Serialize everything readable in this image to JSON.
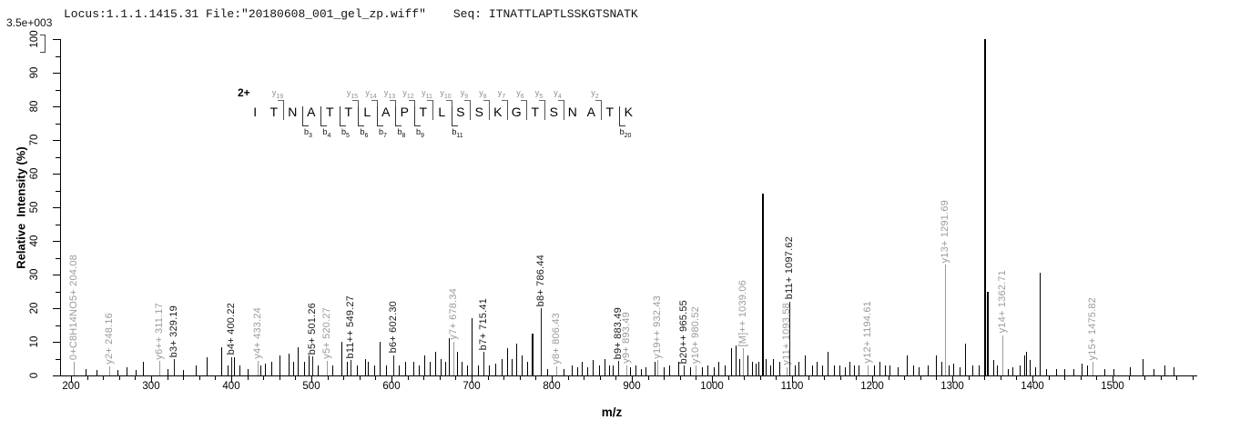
{
  "header": {
    "locus_file": "Locus:1.1.1.1415.31 File:\"20180608_001_gel_zp.wiff\"",
    "seq": "Seq: ITNATTLAPTLSSKGTSNATK"
  },
  "sequence_annotation": {
    "charge_label": "2+",
    "sequence": "ITNATTLAPTLSSKGTSNATK",
    "y_ions": [
      {
        "ion": "y19",
        "boundary": 2
      },
      {
        "ion": "y15",
        "boundary": 6
      },
      {
        "ion": "y14",
        "boundary": 7
      },
      {
        "ion": "y13",
        "boundary": 8
      },
      {
        "ion": "y12",
        "boundary": 9
      },
      {
        "ion": "y11",
        "boundary": 10
      },
      {
        "ion": "y10",
        "boundary": 11
      },
      {
        "ion": "y9",
        "boundary": 12
      },
      {
        "ion": "y8",
        "boundary": 13
      },
      {
        "ion": "y7",
        "boundary": 14
      },
      {
        "ion": "y6",
        "boundary": 15
      },
      {
        "ion": "y5",
        "boundary": 16
      },
      {
        "ion": "y4",
        "boundary": 17
      },
      {
        "ion": "y2",
        "boundary": 19
      }
    ],
    "b_ions": [
      {
        "ion": "b3",
        "boundary": 3
      },
      {
        "ion": "b4",
        "boundary": 4
      },
      {
        "ion": "b5",
        "boundary": 5
      },
      {
        "ion": "b6",
        "boundary": 6
      },
      {
        "ion": "b7",
        "boundary": 7
      },
      {
        "ion": "b8",
        "boundary": 8
      },
      {
        "ion": "b9",
        "boundary": 9
      },
      {
        "ion": "b11",
        "boundary": 11
      },
      {
        "ion": "b20",
        "boundary": 20
      }
    ]
  },
  "chart_data": {
    "type": "bar",
    "variant": "centroid MS/MS spectrum (stick plot)",
    "title": "Locus:1.1.1.1415.31 File:\"20180608_001_gel_zp.wiff\"  Seq: ITNATTLAPTLSSKGTSNATK",
    "intensity_scale": "3.5e+003",
    "xlabel": "m/z",
    "ylabel": "Relative  Intensity (%)",
    "xlim": [
      187,
      1607
    ],
    "ylim": [
      0,
      100
    ],
    "x_major_ticks": [
      200,
      300,
      400,
      500,
      600,
      700,
      800,
      900,
      1000,
      1100,
      1200,
      1300,
      1400,
      1500
    ],
    "x_minor_step": 20,
    "y_major_step": 10,
    "y_minor_step": 5,
    "grid": false,
    "legend": "none",
    "colors": {
      "b": "#1a1a1a",
      "y": "#9b9b9b",
      "other": "#9b9b9b",
      "unlabeled": "#000000"
    },
    "peaks_format": [
      "mz",
      "intensity_pct",
      "label",
      "series(b|y|other|null)",
      "line_width_px"
    ],
    "peaks": [
      [
        204.08,
        4,
        "0+C8H14NO5+ 204.08",
        "other"
      ],
      [
        219,
        2,
        null,
        null
      ],
      [
        232,
        1.5,
        null,
        null
      ],
      [
        248.16,
        2.7,
        "y2+ 248.16",
        "y"
      ],
      [
        258,
        1.5,
        null,
        null
      ],
      [
        270,
        2.5,
        null,
        null
      ],
      [
        281,
        1.5,
        null,
        null
      ],
      [
        290,
        4,
        null,
        null
      ],
      [
        311.17,
        4.3,
        "y6++ 311.17",
        "y"
      ],
      [
        321,
        2,
        null,
        null
      ],
      [
        329.19,
        4.9,
        "b3+ 329.19",
        "b"
      ],
      [
        340,
        1.5,
        null,
        null
      ],
      [
        356,
        3,
        null,
        null
      ],
      [
        370,
        5.4,
        null,
        null
      ],
      [
        388,
        8.5,
        null,
        null
      ],
      [
        396,
        3,
        null,
        null
      ],
      [
        400.22,
        5.5,
        "b4+ 400.22",
        "b"
      ],
      [
        404,
        5.5,
        null,
        null
      ],
      [
        411,
        3,
        null,
        null
      ],
      [
        421,
        2,
        null,
        null
      ],
      [
        433.24,
        4.3,
        "y4+ 433.24",
        "y"
      ],
      [
        437,
        3,
        null,
        null
      ],
      [
        443,
        3.5,
        null,
        null
      ],
      [
        450,
        4,
        null,
        null
      ],
      [
        461,
        6,
        null,
        null
      ],
      [
        472,
        6.5,
        null,
        null
      ],
      [
        478,
        4,
        null,
        null
      ],
      [
        484,
        8.5,
        null,
        null
      ],
      [
        491,
        4,
        null,
        null
      ],
      [
        497,
        6,
        null,
        null
      ],
      [
        501.26,
        5.7,
        "b5+ 501.26",
        "b"
      ],
      [
        509,
        3,
        null,
        null
      ],
      [
        520.27,
        4.3,
        "y5+ 520.27",
        "y"
      ],
      [
        527,
        3,
        null,
        null
      ],
      [
        537.5,
        10,
        null,
        null
      ],
      [
        545,
        4,
        null,
        null
      ],
      [
        549.27,
        4.5,
        "b11++ 549.27",
        "b"
      ],
      [
        557,
        3,
        null,
        null
      ],
      [
        568,
        5,
        null,
        null
      ],
      [
        571,
        4,
        null,
        null
      ],
      [
        579,
        3,
        null,
        null
      ],
      [
        586,
        10,
        null,
        null
      ],
      [
        594,
        3,
        null,
        null
      ],
      [
        602.3,
        6,
        "b6+ 602.30",
        "b"
      ],
      [
        610,
        3,
        null,
        null
      ],
      [
        618,
        4,
        null,
        null
      ],
      [
        628,
        4,
        null,
        null
      ],
      [
        635,
        3,
        null,
        null
      ],
      [
        641,
        6,
        null,
        null
      ],
      [
        648,
        4,
        null,
        null
      ],
      [
        655,
        7,
        null,
        null
      ],
      [
        662,
        5,
        null,
        null
      ],
      [
        668,
        4,
        null,
        null
      ],
      [
        672,
        11,
        null,
        null
      ],
      [
        678.34,
        10,
        "y7+ 678.34",
        "y"
      ],
      [
        682,
        7,
        null,
        null
      ],
      [
        688,
        4,
        null,
        null
      ],
      [
        695,
        3,
        null,
        null
      ],
      [
        701,
        17,
        null,
        null
      ],
      [
        708,
        3,
        null,
        null
      ],
      [
        715.41,
        7,
        "b7+ 715.41",
        "b"
      ],
      [
        722,
        3,
        null,
        null
      ],
      [
        730,
        3.5,
        null,
        null
      ],
      [
        738,
        5,
        null,
        null
      ],
      [
        745,
        8,
        null,
        null
      ],
      [
        750,
        5,
        null,
        null
      ],
      [
        756,
        9.5,
        null,
        null
      ],
      [
        763,
        6,
        null,
        null
      ],
      [
        770,
        4,
        null,
        null
      ],
      [
        776,
        12.5,
        null,
        null,
        2
      ],
      [
        786.44,
        20,
        "b8+ 786.44",
        "b"
      ],
      [
        795,
        2,
        null,
        null
      ],
      [
        806.43,
        2.7,
        "y8+ 806.43",
        "y"
      ],
      [
        815,
        2,
        null,
        null
      ],
      [
        825,
        3,
        null,
        null
      ],
      [
        832,
        2.5,
        null,
        null
      ],
      [
        838,
        4,
        null,
        null
      ],
      [
        845,
        2.5,
        null,
        null
      ],
      [
        852,
        4.5,
        null,
        null
      ],
      [
        860,
        3,
        null,
        null
      ],
      [
        867,
        5,
        null,
        null
      ],
      [
        872,
        3,
        null,
        null
      ],
      [
        877,
        3,
        null,
        null
      ],
      [
        883.49,
        4.3,
        "b9+ 883.49",
        "b"
      ],
      [
        893.49,
        3,
        "y9+ 893.49",
        "y"
      ],
      [
        898,
        2.5,
        null,
        null
      ],
      [
        905,
        3,
        null,
        null
      ],
      [
        912,
        2,
        null,
        null
      ],
      [
        918,
        2.5,
        null,
        null
      ],
      [
        929,
        4,
        null,
        null
      ],
      [
        932.43,
        4.5,
        "y19++ 932.43",
        "y"
      ],
      [
        940,
        2.5,
        null,
        null
      ],
      [
        947,
        3,
        null,
        null
      ],
      [
        958,
        4,
        null,
        null
      ],
      [
        965.55,
        3,
        "b20++ 965.55",
        "b"
      ],
      [
        973,
        2.5,
        null,
        null
      ],
      [
        980.52,
        3,
        "y10+ 980.52",
        "y"
      ],
      [
        988,
        2.5,
        null,
        null
      ],
      [
        995,
        3,
        null,
        null
      ],
      [
        1003,
        2.5,
        null,
        null
      ],
      [
        1009,
        4,
        null,
        null
      ],
      [
        1016,
        3,
        null,
        null
      ],
      [
        1024,
        8,
        null,
        null
      ],
      [
        1030,
        9,
        null,
        null
      ],
      [
        1035,
        5,
        null,
        null
      ],
      [
        1039.06,
        8,
        "[M]++ 1039.06",
        "other"
      ],
      [
        1045,
        6,
        null,
        null
      ],
      [
        1051,
        4,
        null,
        null
      ],
      [
        1055,
        3.5,
        null,
        null
      ],
      [
        1059,
        4,
        null,
        null
      ],
      [
        1063.5,
        54,
        null,
        null,
        2
      ],
      [
        1068,
        5,
        null,
        null
      ],
      [
        1073,
        3,
        null,
        null
      ],
      [
        1077,
        5,
        null,
        null
      ],
      [
        1085,
        4,
        null,
        null
      ],
      [
        1093.58,
        2.5,
        "y11+ 1093.58",
        "y"
      ],
      [
        1097.62,
        22,
        "b11+ 1097.62",
        "b"
      ],
      [
        1104,
        3,
        null,
        null
      ],
      [
        1108,
        4,
        null,
        null
      ],
      [
        1117,
        6,
        null,
        null
      ],
      [
        1125,
        3,
        null,
        null
      ],
      [
        1131,
        4,
        null,
        null
      ],
      [
        1138,
        3,
        null,
        null
      ],
      [
        1145,
        7,
        null,
        null
      ],
      [
        1153,
        3,
        null,
        null
      ],
      [
        1160,
        3,
        null,
        null
      ],
      [
        1166,
        2.5,
        null,
        null
      ],
      [
        1172,
        4,
        null,
        null
      ],
      [
        1178,
        3,
        null,
        null
      ],
      [
        1183,
        3,
        null,
        null
      ],
      [
        1194.61,
        3,
        "y12+ 1194.61",
        "y"
      ],
      [
        1203,
        3,
        null,
        null
      ],
      [
        1210,
        4,
        null,
        null
      ],
      [
        1216,
        3,
        null,
        null
      ],
      [
        1222,
        3,
        null,
        null
      ],
      [
        1232,
        2.5,
        null,
        null
      ],
      [
        1244,
        6,
        null,
        null
      ],
      [
        1252,
        3,
        null,
        null
      ],
      [
        1258,
        2.5,
        null,
        null
      ],
      [
        1270,
        3,
        null,
        null
      ],
      [
        1280,
        6,
        null,
        null
      ],
      [
        1287,
        4,
        null,
        null
      ],
      [
        1291.69,
        33,
        "y13+ 1291.69",
        "y"
      ],
      [
        1296,
        3,
        null,
        null
      ],
      [
        1302,
        3.5,
        null,
        null
      ],
      [
        1310,
        2.5,
        null,
        null
      ],
      [
        1317,
        9.5,
        null,
        null
      ],
      [
        1326,
        3,
        null,
        null
      ],
      [
        1333,
        3,
        null,
        null
      ],
      [
        1341,
        100,
        null,
        null,
        2
      ],
      [
        1344,
        25,
        null,
        null,
        2
      ],
      [
        1352,
        4.5,
        null,
        null
      ],
      [
        1356,
        3,
        null,
        null
      ],
      [
        1362.71,
        12,
        "y14+ 1362.71",
        "y"
      ],
      [
        1370,
        2,
        null,
        null
      ],
      [
        1376,
        2.5,
        null,
        null
      ],
      [
        1385,
        3,
        null,
        null
      ],
      [
        1390,
        6,
        null,
        null
      ],
      [
        1393,
        7,
        null,
        null
      ],
      [
        1397,
        4.5,
        null,
        null
      ],
      [
        1404,
        2.5,
        null,
        null
      ],
      [
        1410,
        30.5,
        null,
        null
      ],
      [
        1418,
        2,
        null,
        null
      ],
      [
        1430,
        2,
        null,
        null
      ],
      [
        1440,
        2,
        null,
        null
      ],
      [
        1452,
        2,
        null,
        null
      ],
      [
        1462,
        3.5,
        null,
        null
      ],
      [
        1469,
        3,
        null,
        null
      ],
      [
        1475.82,
        4,
        "y15+ 1475.82",
        "y"
      ],
      [
        1490,
        2,
        null,
        null
      ],
      [
        1502,
        2,
        null,
        null
      ],
      [
        1522,
        2.5,
        null,
        null
      ],
      [
        1538,
        5,
        null,
        null
      ],
      [
        1552,
        2,
        null,
        null
      ],
      [
        1565,
        3,
        null,
        null
      ],
      [
        1577,
        2.5,
        null,
        null
      ]
    ]
  }
}
